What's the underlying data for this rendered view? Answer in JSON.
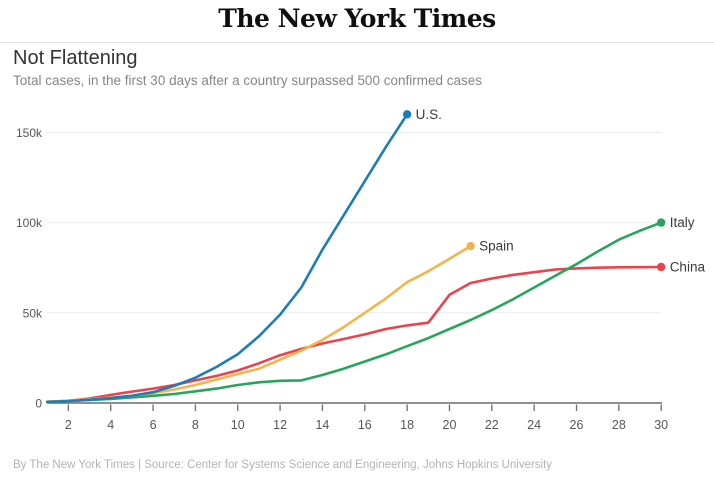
{
  "masthead": {
    "title": "The New York Times"
  },
  "header": {
    "title": "Not Flattening",
    "subtitle": "Total cases, in the first 30 days after a country surpassed 500 confirmed cases"
  },
  "footer": {
    "credit": "By The New York Times | Source: Center for Systems Science and Engineering, Johns Hopkins University"
  },
  "chart_data": {
    "type": "line",
    "title": "Not Flattening",
    "subtitle": "Total cases, in the first 30 days after a country surpassed 500 confirmed cases",
    "x_unit": "days since surpassing 500 confirmed cases",
    "y_unit": "total cases (thousands)",
    "xlim": [
      1,
      30
    ],
    "ylim_thousands": [
      0,
      173
    ],
    "grid": "horizontal",
    "legend_position": "line-end-labels",
    "x_ticks": [
      2,
      4,
      6,
      8,
      10,
      12,
      14,
      16,
      18,
      20,
      22,
      24,
      26,
      28,
      30
    ],
    "y_ticks": [
      {
        "value": 0,
        "label": "0"
      },
      {
        "value": 50,
        "label": "50k"
      },
      {
        "value": 100,
        "label": "100k"
      },
      {
        "value": 150,
        "label": "150k"
      }
    ],
    "series": [
      {
        "name": "U.S.",
        "color": "#1b7db9",
        "start_day": 1,
        "unit": "thousands",
        "values": [
          0.6,
          1.1,
          1.8,
          2.7,
          4,
          6,
          9.5,
          14,
          20,
          27,
          37,
          49,
          64,
          85,
          104,
          123,
          142,
          160
        ]
      },
      {
        "name": "Spain",
        "color": "#f3b54a",
        "start_day": 1,
        "unit": "thousands",
        "values": [
          0.7,
          1.3,
          2,
          3,
          4,
          5.5,
          7.5,
          10,
          13,
          16,
          19,
          24,
          29,
          35,
          42,
          50,
          58,
          67,
          73,
          80,
          87
        ]
      },
      {
        "name": "Italy",
        "color": "#28a55c",
        "start_day": 1,
        "unit": "thousands",
        "values": [
          0.7,
          1.1,
          1.7,
          2.3,
          3.1,
          4,
          5,
          6.5,
          8,
          10,
          11.5,
          12.3,
          12.5,
          15.5,
          19,
          23,
          27,
          31.5,
          36,
          41,
          46,
          51.5,
          57.5,
          64,
          70.5,
          77,
          84,
          90.5,
          95.5,
          100
        ]
      },
      {
        "name": "China",
        "color": "#e9444e",
        "start_day": 1,
        "unit": "thousands",
        "values": [
          0.6,
          1.2,
          2.5,
          4.5,
          6.3,
          8,
          10,
          12.5,
          15,
          18,
          22,
          26.5,
          30,
          33,
          35.5,
          38,
          41,
          43,
          44.5,
          60,
          66.5,
          69,
          71,
          72.5,
          74,
          74.6,
          75,
          75.2,
          75.3,
          75.4
        ]
      }
    ],
    "colors": {
      "grid": "#ebebeb",
      "axis": "#6b6b6b",
      "tick_text": "#565656",
      "label_text": "#3a3a3a"
    }
  }
}
